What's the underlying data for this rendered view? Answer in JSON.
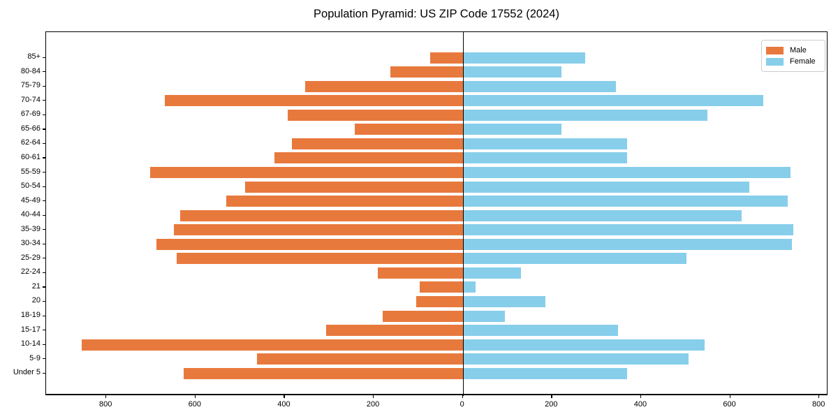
{
  "chart_data": {
    "type": "bar",
    "variant": "population-pyramid",
    "title": "Population Pyramid: US ZIP Code 17552 (2024)",
    "categories": [
      "85+",
      "80-84",
      "75-79",
      "70-74",
      "67-69",
      "65-66",
      "62-64",
      "60-61",
      "55-59",
      "50-54",
      "45-49",
      "40-44",
      "35-39",
      "30-34",
      "25-29",
      "22-24",
      "21",
      "20",
      "18-19",
      "15-17",
      "10-14",
      "5-9",
      "Under 5"
    ],
    "series": [
      {
        "name": "Male",
        "side": "left",
        "color": "#e8793d",
        "values": [
          73,
          163,
          354,
          669,
          393,
          242,
          384,
          422,
          701,
          489,
          531,
          634,
          648,
          688,
          642,
          190,
          96,
          105,
          179,
          306,
          855,
          461,
          626
        ]
      },
      {
        "name": "Female",
        "side": "right",
        "color": "#87ceeb",
        "values": [
          275,
          222,
          343,
          674,
          549,
          222,
          369,
          369,
          735,
          643,
          729,
          626,
          741,
          738,
          502,
          131,
          29,
          185,
          95,
          349,
          543,
          507,
          369
        ]
      }
    ],
    "x_tick_values": [
      -800,
      -600,
      -400,
      -200,
      0,
      200,
      400,
      600,
      800
    ],
    "x_tick_labels": [
      "800",
      "600",
      "400",
      "200",
      "0",
      "200",
      "400",
      "600",
      "800"
    ],
    "xlim": [
      -935,
      820
    ],
    "grid": false,
    "legend_position": "upper-right",
    "zero_line": true
  },
  "colors": {
    "male": "#e8793d",
    "female": "#87ceeb",
    "axis": "#000000",
    "legend_border": "#cccccc",
    "background": "#ffffff"
  }
}
